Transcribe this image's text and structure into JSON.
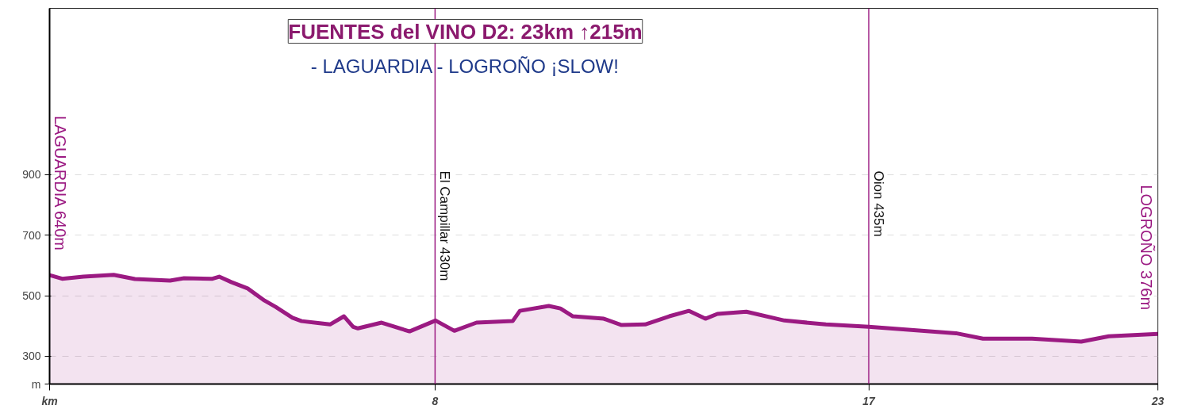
{
  "chart_data": {
    "type": "area",
    "title": "FUENTES del VINO D2: 23km ↑215m",
    "subtitle": "- LAGUARDIA - LOGROÑO ¡SLOW!",
    "xlabel": "km",
    "ylabel": "m",
    "x": [
      0,
      0.26,
      0.7,
      1.33,
      1.77,
      2.5,
      2.79,
      3.38,
      3.52,
      3.77,
      4.11,
      4.46,
      4.69,
      5.04,
      5.23,
      5.57,
      5.82,
      6.11,
      6.3,
      6.4,
      6.89,
      7.47,
      8.01,
      8.4,
      8.86,
      9.61,
      9.76,
      10.36,
      10.6,
      10.86,
      11.5,
      11.87,
      12.36,
      12.86,
      13.27,
      13.61,
      13.86,
      14.46,
      15.25,
      16.11,
      17.0,
      18.81,
      19.37,
      20.39,
      21.41,
      21.98,
      23
    ],
    "series": [
      {
        "color": "#9b1a82",
        "values": [
          568,
          556,
          563,
          569,
          555,
          550,
          558,
          556,
          563,
          545,
          524,
          484,
          463,
          427,
          416,
          410,
          405,
          432,
          397,
          392,
          411,
          382,
          418,
          384,
          411,
          416,
          450,
          466,
          458,
          432,
          424,
          403,
          405,
          432,
          450,
          424,
          440,
          447,
          418,
          405,
          397,
          376,
          358,
          358,
          348,
          366,
          374
        ]
      }
    ],
    "xlim": [
      0,
      23
    ],
    "ylim": [
      208,
      1450
    ],
    "xticks": [
      8,
      17,
      23
    ],
    "yticks": [
      300,
      500,
      700,
      900
    ],
    "grid": "y",
    "line_style": "solid",
    "ref_lines": [
      {
        "axis": "x",
        "value": 8,
        "label": "El Campillar 430m",
        "color": "#9b1a82"
      },
      {
        "axis": "x",
        "value": 17,
        "label": "Oion 435m",
        "color": "#9b1a82"
      }
    ],
    "annotations": [
      {
        "text": "LAGUARDIA 640m",
        "x": 0,
        "y": 568
      },
      {
        "text": "LOGROÑO 376m",
        "x": 23,
        "y": 374
      }
    ]
  }
}
